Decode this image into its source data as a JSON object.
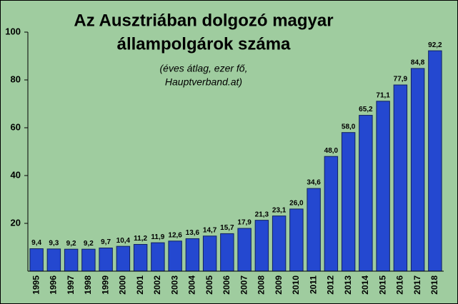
{
  "chart_data": {
    "type": "bar",
    "title": [
      "Az Ausztriában dolgozó magyar",
      "állampolgárok száma"
    ],
    "subtitle": [
      "(éves átlag, ezer fő,",
      "Hauptverband.at)"
    ],
    "categories": [
      "1995",
      "1996",
      "1997",
      "1998",
      "1999",
      "2000",
      "2001",
      "2002",
      "2003",
      "2004",
      "2005",
      "2006",
      "2007",
      "2008",
      "2009",
      "2010",
      "2011",
      "2012",
      "2013",
      "2014",
      "2015",
      "2016",
      "2017",
      "2018"
    ],
    "values": [
      9.4,
      9.3,
      9.2,
      9.2,
      9.7,
      10.4,
      11.2,
      11.9,
      12.6,
      13.6,
      14.7,
      15.7,
      17.9,
      21.3,
      23.1,
      26.0,
      34.6,
      48.0,
      58.0,
      65.2,
      71.1,
      77.9,
      84.8,
      92.2
    ],
    "value_labels": [
      "9,4",
      "9,3",
      "9,2",
      "9,2",
      "9,7",
      "10,4",
      "11,2",
      "11,9",
      "12,6",
      "13,6",
      "14,7",
      "15,7",
      "17,9",
      "21,3",
      "23,1",
      "26,0",
      "34,6",
      "48,0",
      "58,0",
      "65,2",
      "71,1",
      "77,9",
      "84,8",
      "92,2"
    ],
    "color": "#2448d0",
    "ylim": [
      0,
      100
    ],
    "yticks": [
      20,
      40,
      60,
      80,
      100
    ],
    "grid": false
  }
}
